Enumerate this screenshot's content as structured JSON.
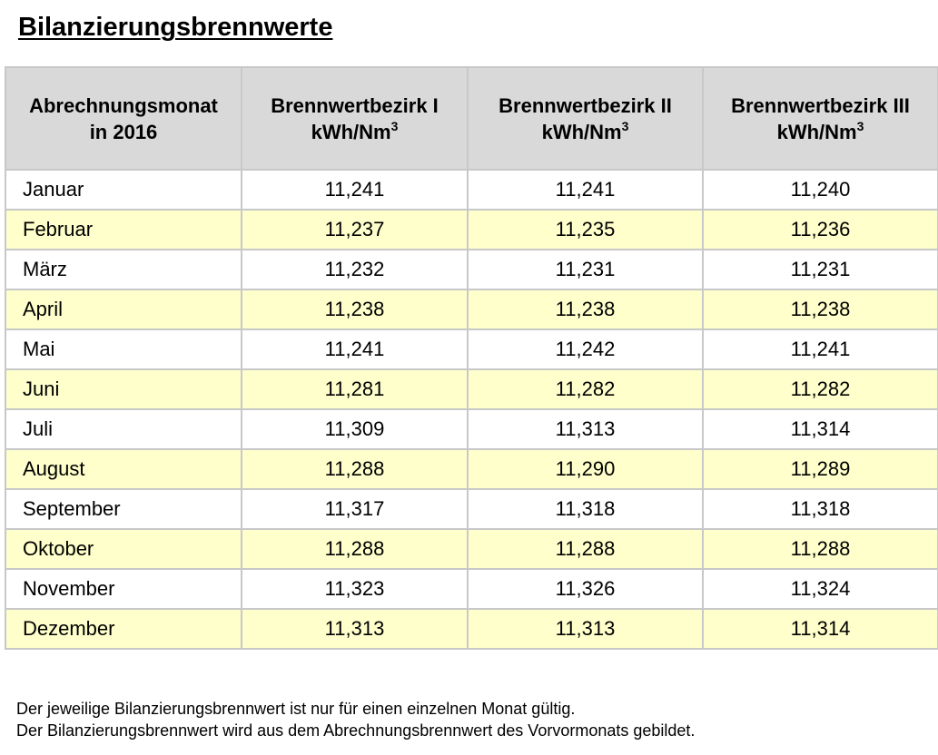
{
  "title": "Bilanzierungsbrennwerte",
  "table": {
    "headers": [
      {
        "line1": "Abrechnungsmonat",
        "line2": "in 2016",
        "sup": ""
      },
      {
        "line1": "Brennwertbezirk I",
        "line2": "kWh/Nm",
        "sup": "3"
      },
      {
        "line1": "Brennwertbezirk II",
        "line2": "kWh/Nm",
        "sup": "3"
      },
      {
        "line1": "Brennwertbezirk III",
        "line2": "kWh/Nm",
        "sup": "3"
      }
    ],
    "rows": [
      {
        "month": "Januar",
        "values": [
          "11,241",
          "11,241",
          "11,240"
        ]
      },
      {
        "month": "Februar",
        "values": [
          "11,237",
          "11,235",
          "11,236"
        ]
      },
      {
        "month": "März",
        "values": [
          "11,232",
          "11,231",
          "11,231"
        ]
      },
      {
        "month": "April",
        "values": [
          "11,238",
          "11,238",
          "11,238"
        ]
      },
      {
        "month": "Mai",
        "values": [
          "11,241",
          "11,242",
          "11,241"
        ]
      },
      {
        "month": "Juni",
        "values": [
          "11,281",
          "11,282",
          "11,282"
        ]
      },
      {
        "month": "Juli",
        "values": [
          "11,309",
          "11,313",
          "11,314"
        ]
      },
      {
        "month": "August",
        "values": [
          "11,288",
          "11,290",
          "11,289"
        ]
      },
      {
        "month": "September",
        "values": [
          "11,317",
          "11,318",
          "11,318"
        ]
      },
      {
        "month": "Oktober",
        "values": [
          "11,288",
          "11,288",
          "11,288"
        ]
      },
      {
        "month": "November",
        "values": [
          "11,323",
          "11,326",
          "11,324"
        ]
      },
      {
        "month": "Dezember",
        "values": [
          "11,313",
          "11,313",
          "11,314"
        ]
      }
    ]
  },
  "notes": [
    "Der jeweilige Bilanzierungsbrennwert ist nur für einen einzelnen Monat gültig.",
    "Der Bilanzierungsbrennwert wird aus dem Abrechnungsbrennwert des Vorvormonats gebildet."
  ],
  "colors": {
    "header_bg": "#d9d9d9",
    "alt_row_bg": "#ffffcc",
    "border": "#c8c8c8"
  }
}
